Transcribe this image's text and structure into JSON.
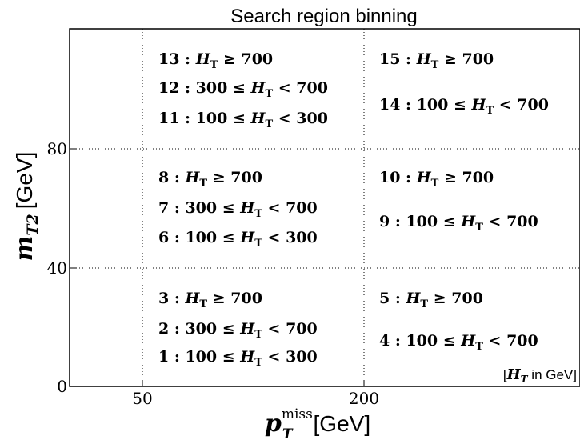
{
  "chart_data": {
    "type": "table",
    "title": "Search region binning",
    "xlabel": {
      "symbol": "p",
      "superscript": "miss",
      "subscript": "T",
      "unit": "[GeV]"
    },
    "ylabel": {
      "symbol": "m",
      "subscript": "T2",
      "unit": "[GeV]"
    },
    "x_ticks": [
      "50",
      "200"
    ],
    "y_ticks": [
      "0",
      "40",
      "80"
    ],
    "x_boundaries": [
      50,
      200
    ],
    "y_boundaries": [
      0,
      40,
      80
    ],
    "grid": "dotted",
    "note": {
      "symbol": "H",
      "subscript": "T",
      "text": " in GeV",
      "placement": "bottom-right"
    },
    "regions": [
      {
        "id": 1,
        "x": "50-200",
        "y": "0-40",
        "label": "1 :  100 ≤ H_T < 300"
      },
      {
        "id": 2,
        "x": "50-200",
        "y": "0-40",
        "label": "2 :  300 ≤ H_T < 700"
      },
      {
        "id": 3,
        "x": "50-200",
        "y": "0-40",
        "label": "3 :  H_T ≥ 700"
      },
      {
        "id": 4,
        "x": ">200",
        "y": "0-40",
        "label": "4 :  100 ≤ H_T < 700"
      },
      {
        "id": 5,
        "x": ">200",
        "y": "0-40",
        "label": "5 :  H_T ≥ 700"
      },
      {
        "id": 6,
        "x": "50-200",
        "y": "40-80",
        "label": "6 :  100 ≤ H_T < 300"
      },
      {
        "id": 7,
        "x": "50-200",
        "y": "40-80",
        "label": "7 :  300 ≤ H_T < 700"
      },
      {
        "id": 8,
        "x": "50-200",
        "y": "40-80",
        "label": "8 :  H_T ≥ 700"
      },
      {
        "id": 9,
        "x": ">200",
        "y": "40-80",
        "label": "9 :  100 ≤ H_T < 700"
      },
      {
        "id": 10,
        "x": ">200",
        "y": "40-80",
        "label": "10 :  H_T ≥ 700"
      },
      {
        "id": 11,
        "x": "50-200",
        "y": ">80",
        "label": "11 :  100 ≤ H_T < 300"
      },
      {
        "id": 12,
        "x": "50-200",
        "y": ">80",
        "label": "12 :  300 ≤ H_T < 700"
      },
      {
        "id": 13,
        "x": "50-200",
        "y": ">80",
        "label": "13 :  H_T ≥ 700"
      },
      {
        "id": 14,
        "x": ">200",
        "y": ">80",
        "label": "14 :  100 ≤ H_T < 700"
      },
      {
        "id": 15,
        "x": ">200",
        "y": ">80",
        "label": "15 :  H_T ≥ 700"
      }
    ]
  }
}
